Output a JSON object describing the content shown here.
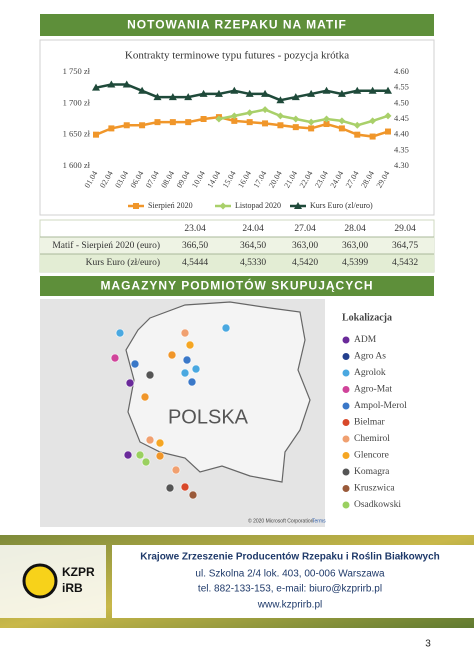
{
  "header_1": "NOTOWANIA RZEPAKU NA MATIF",
  "chart_data": {
    "type": "line",
    "title": "Kontrakty terminowe typu futures - pozycja krótka",
    "categories": [
      "01.04",
      "02.04",
      "03.04",
      "06.04",
      "07.04",
      "08.04",
      "09.04",
      "10.04",
      "14.04",
      "15.04",
      "16.04",
      "17.04",
      "20.04",
      "21.04",
      "22.04",
      "23.04",
      "24.04",
      "27.04",
      "28.04",
      "29.04"
    ],
    "series": [
      {
        "name": "Sierpień 2020",
        "color": "#f0962a",
        "marker": "square",
        "values": [
          1650,
          1660,
          1665,
          1665,
          1670,
          1670,
          1670,
          1675,
          1678,
          1672,
          1670,
          1668,
          1665,
          1662,
          1660,
          1667,
          1660,
          1650,
          1647,
          1655
        ]
      },
      {
        "name": "Listopad 2020",
        "color": "#a9d06a",
        "marker": "diamond",
        "values": [
          null,
          null,
          null,
          null,
          null,
          null,
          null,
          null,
          1675,
          1680,
          1685,
          1690,
          1680,
          1675,
          1670,
          1675,
          1672,
          1665,
          1672,
          1680
        ]
      },
      {
        "name": "Kurs Euro (zl/euro)",
        "color": "#1f4a3a",
        "marker": "triangle",
        "axis": "y2",
        "values": [
          4.55,
          4.56,
          4.56,
          4.54,
          4.52,
          4.52,
          4.52,
          4.53,
          4.53,
          4.54,
          4.53,
          4.53,
          4.51,
          4.52,
          4.53,
          4.54,
          4.53,
          4.54,
          4.54,
          4.54
        ]
      }
    ],
    "ylim": [
      1600,
      1750
    ],
    "yticks": [
      {
        "value": 1600,
        "label": "1 600 zł"
      },
      {
        "value": 1650,
        "label": "1 650 zł"
      },
      {
        "value": 1700,
        "label": "1 700 zł"
      },
      {
        "value": 1750,
        "label": "1 750 zł"
      }
    ],
    "y2lim": [
      4.3,
      4.6
    ],
    "y2ticks": [
      {
        "value": 4.3,
        "label": "4.30"
      },
      4.35,
      {
        "value": 4.4,
        "label": "4.40"
      },
      4.45,
      {
        "value": 4.5,
        "label": "4.50"
      },
      4.55,
      {
        "value": 4.6,
        "label": "4.60"
      }
    ]
  },
  "table": {
    "header": [
      "23.04",
      "24.04",
      "27.04",
      "28.04",
      "29.04"
    ],
    "rows": [
      [
        "Matif - Sierpień 2020 (euro)",
        "366,50",
        "364,50",
        "363,00",
        "363,00",
        "364,75"
      ],
      [
        "Kurs Euro (zł/euro)",
        "4,5444",
        "4,5330",
        "4,5420",
        "4,5399",
        "4,5432"
      ]
    ]
  },
  "header_2": "MAGAZYNY PODMIOTÓW SKUPUJĄCYCH",
  "map": {
    "label": "POLSKA",
    "legend_title": "Lokalizacja",
    "legend": [
      {
        "name": "ADM",
        "color": "#6a2a9a"
      },
      {
        "name": "Agro As",
        "color": "#24408e"
      },
      {
        "name": "Agrolok",
        "color": "#4aa8e0"
      },
      {
        "name": "Agro-Mat",
        "color": "#d0449a"
      },
      {
        "name": "Ampol-Merol",
        "color": "#3a78c8"
      },
      {
        "name": "Bielmar",
        "color": "#d8482a"
      },
      {
        "name": "Chemirol",
        "color": "#f0a070"
      },
      {
        "name": "Glencore",
        "color": "#f5a623"
      },
      {
        "name": "Komagra",
        "color": "#555555"
      },
      {
        "name": "Kruszwica",
        "color": "#9a5a3a"
      },
      {
        "name": "Osadkowski",
        "color": "#9ad060"
      }
    ],
    "credit": "© 2020 Microsoft Corporation",
    "terms": "Terms"
  },
  "footer": {
    "logo_line_1": "KZPR",
    "logo_line_2": "iRB",
    "org": "Krajowe Zrzeszenie Producentów Rzepaku i Roślin Białkowych",
    "address": "ul. Szkolna 2/4 lok. 403, 00-006 Warszawa",
    "contact": "tel. 882-133-153, e-mail: biuro@kzprirb.pl",
    "web": "www.kzprirb.pl"
  },
  "page_number": "3"
}
